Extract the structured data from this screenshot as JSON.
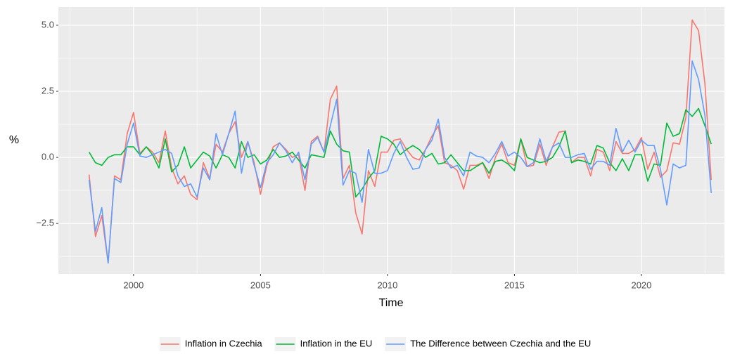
{
  "chart_data": {
    "type": "line",
    "x": [
      1998.25,
      1998.5,
      1998.75,
      1999,
      1999.25,
      1999.5,
      1999.75,
      2000,
      2000.25,
      2000.5,
      2000.75,
      2001,
      2001.25,
      2001.5,
      2001.75,
      2002,
      2002.25,
      2002.5,
      2002.75,
      2003,
      2003.25,
      2003.5,
      2003.75,
      2004,
      2004.25,
      2004.5,
      2004.75,
      2005,
      2005.25,
      2005.5,
      2005.75,
      2006,
      2006.25,
      2006.5,
      2006.75,
      2007,
      2007.25,
      2007.5,
      2007.75,
      2008,
      2008.25,
      2008.5,
      2008.75,
      2009,
      2009.25,
      2009.5,
      2009.75,
      2010,
      2010.25,
      2010.5,
      2010.75,
      2011,
      2011.25,
      2011.5,
      2011.75,
      2012,
      2012.25,
      2012.5,
      2012.75,
      2013,
      2013.25,
      2013.5,
      2013.75,
      2014,
      2014.25,
      2014.5,
      2014.75,
      2015,
      2015.25,
      2015.5,
      2015.75,
      2016,
      2016.25,
      2016.5,
      2016.75,
      2017,
      2017.25,
      2017.5,
      2017.75,
      2018,
      2018.25,
      2018.5,
      2018.75,
      2019,
      2019.25,
      2019.5,
      2019.75,
      2020,
      2020.25,
      2020.5,
      2020.75,
      2021,
      2021.25,
      2021.5,
      2021.75,
      2022,
      2022.25,
      2022.5,
      2022.75
    ],
    "series": [
      {
        "name": "Inflation in Czechia",
        "color": "#F8766D",
        "values": [
          -0.65,
          -3.0,
          -2.2,
          -4.0,
          -0.7,
          -0.85,
          0.9,
          1.7,
          0.15,
          0.4,
          0.2,
          -0.2,
          1.0,
          -0.4,
          -1.0,
          -0.7,
          -1.4,
          -1.6,
          -0.2,
          -0.8,
          0.5,
          0.2,
          0.9,
          1.35,
          0.0,
          0.6,
          -0.2,
          -1.4,
          -0.3,
          0.4,
          0.55,
          0.3,
          0.0,
          0.1,
          -1.25,
          0.6,
          0.8,
          0.2,
          2.2,
          2.7,
          -0.8,
          -0.3,
          -2.1,
          -2.9,
          -0.5,
          -1.1,
          0.2,
          0.2,
          0.65,
          0.7,
          0.3,
          0.0,
          -0.1,
          0.3,
          0.8,
          1.2,
          -0.2,
          -0.3,
          -0.5,
          -1.2,
          -0.3,
          -0.3,
          -0.2,
          -0.8,
          0.0,
          0.5,
          -0.2,
          -0.3,
          0.7,
          -0.35,
          -0.3,
          0.5,
          -0.3,
          0.4,
          0.95,
          1.0,
          -0.2,
          0.0,
          0.0,
          -0.7,
          0.3,
          0.2,
          -0.5,
          0.6,
          0.15,
          0.15,
          0.3,
          0.75,
          -0.45,
          0.2,
          -0.75,
          -0.5,
          0.55,
          0.5,
          1.5,
          5.2,
          4.8,
          2.8,
          -0.85
        ]
      },
      {
        "name": "Inflation in the EU",
        "color": "#00BA38",
        "values": [
          0.2,
          -0.2,
          -0.3,
          0.0,
          0.1,
          0.1,
          0.4,
          0.4,
          0.1,
          0.4,
          0.1,
          -0.4,
          0.7,
          -0.55,
          -0.3,
          0.4,
          -0.4,
          -0.1,
          0.2,
          0.05,
          -0.4,
          0.1,
          0.0,
          -0.4,
          0.6,
          0.0,
          0.1,
          -0.25,
          -0.1,
          0.3,
          0.0,
          0.05,
          0.2,
          -0.1,
          -0.4,
          0.1,
          0.05,
          0.0,
          1.0,
          0.5,
          0.25,
          0.2,
          -1.5,
          -1.2,
          -0.8,
          -0.5,
          0.8,
          0.7,
          0.5,
          0.1,
          0.3,
          0.45,
          0.3,
          0.0,
          0.15,
          -0.25,
          -0.2,
          0.1,
          -0.2,
          -0.5,
          -0.5,
          -0.35,
          -0.2,
          -0.6,
          -0.15,
          -0.1,
          -0.25,
          -0.5,
          0.7,
          0.0,
          -0.1,
          -0.2,
          -0.15,
          0.0,
          0.4,
          1.0,
          -0.2,
          -0.1,
          -0.15,
          -0.25,
          0.45,
          0.35,
          -0.2,
          -0.5,
          -0.05,
          -0.5,
          0.1,
          0.1,
          -0.9,
          -0.25,
          -0.3,
          1.3,
          0.8,
          0.9,
          1.8,
          1.55,
          1.85,
          1.2,
          0.5
        ]
      },
      {
        "name": "The Difference between Czechia and the EU",
        "color": "#619CFF",
        "values": [
          -0.85,
          -2.8,
          -1.9,
          -4.0,
          -0.8,
          -0.95,
          0.5,
          1.3,
          0.05,
          0.0,
          0.1,
          0.2,
          0.3,
          0.15,
          -0.7,
          -1.1,
          -1.0,
          -1.5,
          -0.4,
          -0.85,
          0.9,
          0.1,
          0.9,
          1.75,
          -0.6,
          0.6,
          -0.3,
          -1.15,
          -0.2,
          0.1,
          0.55,
          0.25,
          -0.2,
          0.2,
          -0.85,
          0.5,
          0.75,
          0.2,
          1.2,
          2.2,
          -1.05,
          -0.5,
          -0.6,
          -1.7,
          0.3,
          -0.6,
          -0.6,
          -0.5,
          0.15,
          0.6,
          0.0,
          -0.45,
          -0.4,
          0.3,
          0.65,
          1.45,
          0.0,
          -0.4,
          -0.3,
          -0.7,
          0.2,
          0.05,
          0.0,
          -0.2,
          0.15,
          0.6,
          0.05,
          0.2,
          0.0,
          -0.35,
          -0.2,
          0.7,
          -0.15,
          0.4,
          0.55,
          0.0,
          0.0,
          0.1,
          0.15,
          -0.45,
          -0.15,
          -0.15,
          -0.3,
          1.1,
          0.2,
          0.65,
          0.2,
          0.65,
          0.45,
          0.45,
          -0.45,
          -1.8,
          -0.25,
          -0.4,
          -0.3,
          3.65,
          2.95,
          1.6,
          -1.35
        ]
      }
    ],
    "xlabel": "Time",
    "ylabel": "%",
    "xlim": [
      1997.04,
      2023.27
    ],
    "ylim": [
      -4.41,
      5.69
    ],
    "xticks": [
      2000,
      2005,
      2010,
      2015,
      2020
    ],
    "yticks": [
      {
        "value": -2.5,
        "label": "−2.5"
      },
      {
        "value": 0,
        "label": "0.0"
      },
      {
        "value": 2.5,
        "label": "2.5"
      },
      {
        "value": 5,
        "label": "5.0"
      }
    ],
    "grid": true,
    "legend": "bottom"
  }
}
